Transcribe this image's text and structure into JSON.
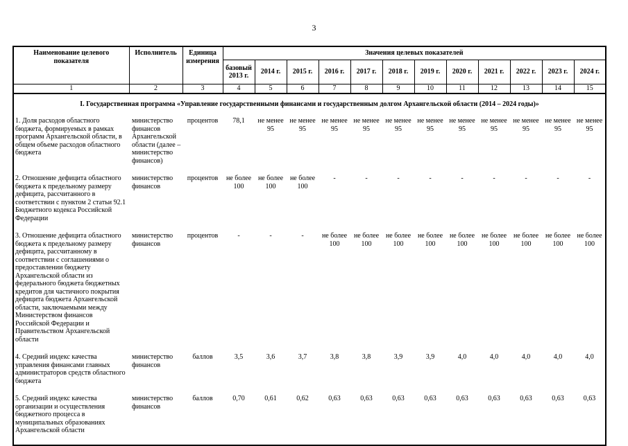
{
  "page": {
    "number": "3"
  },
  "table": {
    "headers": {
      "col1": "Наименование целевого показателя",
      "col2": "Исполнитель",
      "col3": "Единица измерения",
      "values_group": "Значения целевых показателей",
      "year_cols": [
        "базовый 2013 г.",
        "2014 г.",
        "2015 г.",
        "2016 г.",
        "2017 г.",
        "2018 г.",
        "2019 г.",
        "2020 г.",
        "2021 г.",
        "2022 г.",
        "2023 г.",
        "2024 г."
      ],
      "col_numbers": [
        "1",
        "2",
        "3",
        "4",
        "5",
        "6",
        "7",
        "8",
        "9",
        "10",
        "11",
        "12",
        "13",
        "14",
        "15"
      ]
    },
    "section_title": "I. Государственная программа «Управление государственными финансами и государственным долгом Архангельской области (2014 – 2024 годы)»",
    "rows": [
      {
        "name": "1. Доля расходов областного бюджета, формируемых в рамках программ Архангельской области, в общем объеме расходов областного бюджета",
        "executor": "министерство финансов Архангельской области (далее – министерство финансов)",
        "unit": "процентов",
        "values": [
          "78,1",
          "не менее 95",
          "не менее 95",
          "не менее 95",
          "не менее 95",
          "не менее 95",
          "не менее 95",
          "не менее 95",
          "не менее 95",
          "не менее 95",
          "не менее 95",
          "не менее 95"
        ]
      },
      {
        "name": "2. Отношение дефицита областного бюджета к предельному размеру дефицита, рассчитанного в соответствии с пунктом 2 статьи 92.1 Бюджетного кодекса Российской Федерации",
        "executor": "министерство финансов",
        "unit": "процентов",
        "values": [
          "не более 100",
          "не более 100",
          "не более 100",
          "-",
          "-",
          "-",
          "-",
          "-",
          "-",
          "-",
          "-",
          "-"
        ]
      },
      {
        "name": "3. Отношение дефицита областного бюджета к предельному размеру дефицита, рассчитанному в соответствии с соглашениями о предоставлении бюджету Архангельской области из федерального бюджета бюджетных кредитов для частичного покрытия дефицита бюджета Архангельской области, заключаемыми между Министерством финансов Российской Федерации и Правительством Архангельской области",
        "executor": "министерство финансов",
        "unit": "процентов",
        "values": [
          "-",
          "-",
          "-",
          "не более 100",
          "не более 100",
          "не более 100",
          "не более 100",
          "не более 100",
          "не более 100",
          "не более 100",
          "не более 100",
          "не более 100"
        ]
      },
      {
        "name": "4. Средний индекс качества управления финансами главных администраторов средств областного бюджета",
        "executor": "министерство финансов",
        "unit": "баллов",
        "values": [
          "3,5",
          "3,6",
          "3,7",
          "3,8",
          "3,8",
          "3,9",
          "3,9",
          "4,0",
          "4,0",
          "4,0",
          "4,0",
          "4,0"
        ]
      },
      {
        "name": "5. Средний индекс качества организации и осуществления бюджетного процесса в муниципальных образованиях Архангельской области",
        "executor": "министерство финансов",
        "unit": "баллов",
        "values": [
          "0,70",
          "0,61",
          "0,62",
          "0,63",
          "0,63",
          "0,63",
          "0,63",
          "0,63",
          "0,63",
          "0,63",
          "0,63",
          "0,63"
        ]
      }
    ]
  }
}
